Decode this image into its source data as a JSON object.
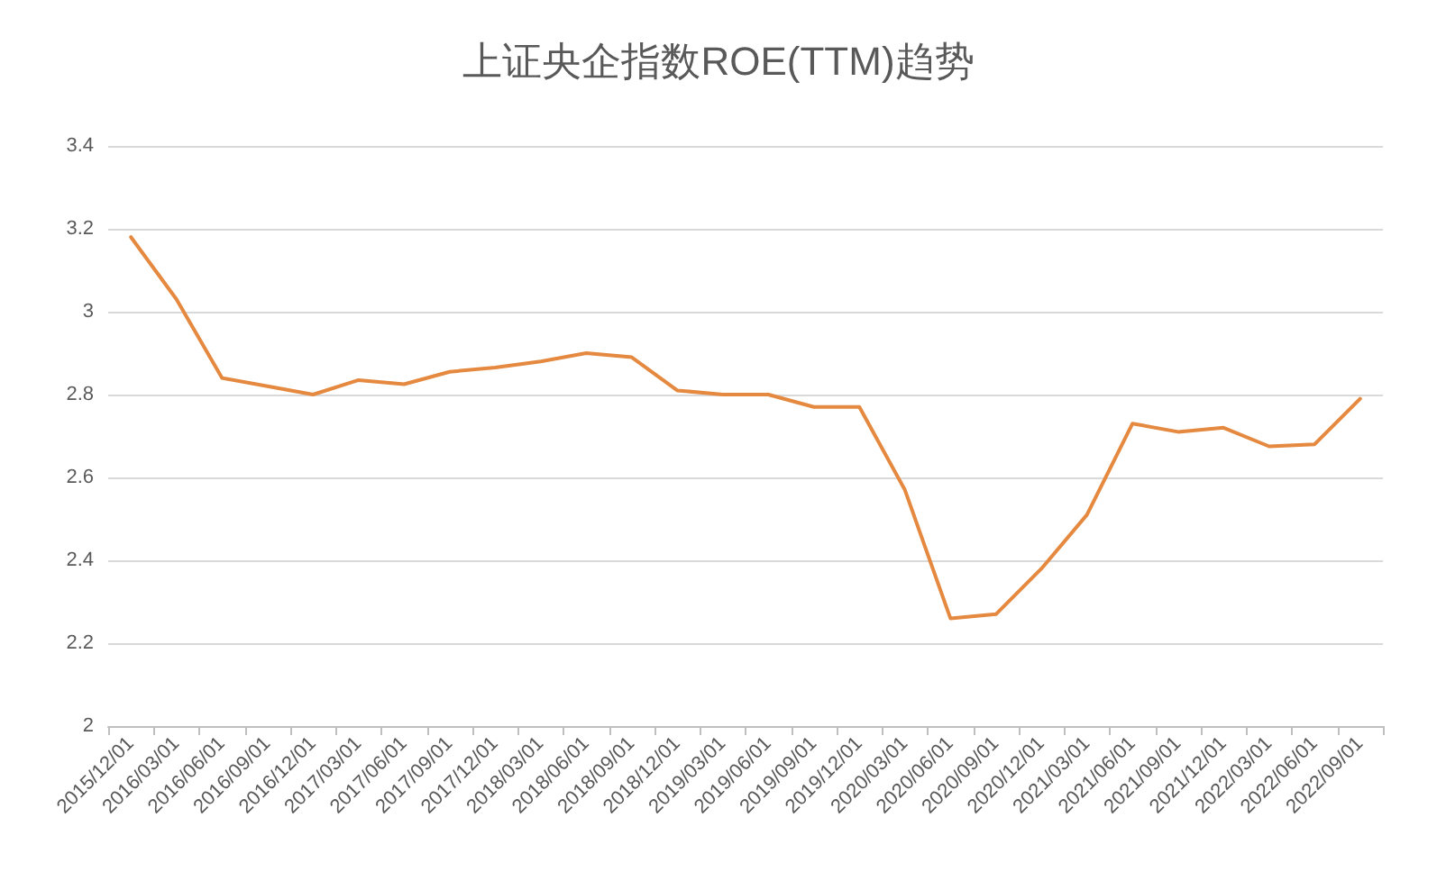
{
  "chart_data": {
    "type": "line",
    "title": "上证央企指数ROE(TTM)趋势",
    "categories": [
      "2015/12/01",
      "2016/03/01",
      "2016/06/01",
      "2016/09/01",
      "2016/12/01",
      "2017/03/01",
      "2017/06/01",
      "2017/09/01",
      "2017/12/01",
      "2018/03/01",
      "2018/06/01",
      "2018/09/01",
      "2018/12/01",
      "2019/03/01",
      "2019/06/01",
      "2019/09/01",
      "2019/12/01",
      "2020/03/01",
      "2020/06/01",
      "2020/09/01",
      "2020/12/01",
      "2021/03/01",
      "2021/06/01",
      "2021/09/01",
      "2021/12/01",
      "2022/03/01",
      "2022/06/01",
      "2022/09/01"
    ],
    "series": [
      {
        "color": "#e4893f",
        "values": [
          3.18,
          3.03,
          2.84,
          2.82,
          2.8,
          2.835,
          2.825,
          2.855,
          2.865,
          2.88,
          2.9,
          2.89,
          2.81,
          2.8,
          2.8,
          2.77,
          2.77,
          2.57,
          2.26,
          2.27,
          2.38,
          2.51,
          2.73,
          2.71,
          2.72,
          2.675,
          2.68,
          2.79
        ]
      }
    ],
    "ylim": [
      2,
      3.4
    ],
    "yticks": [
      2,
      2.2,
      2.4,
      2.6,
      2.8,
      3,
      3.2,
      3.4
    ],
    "grid": "y",
    "marker": "none",
    "line_style": "solid"
  }
}
